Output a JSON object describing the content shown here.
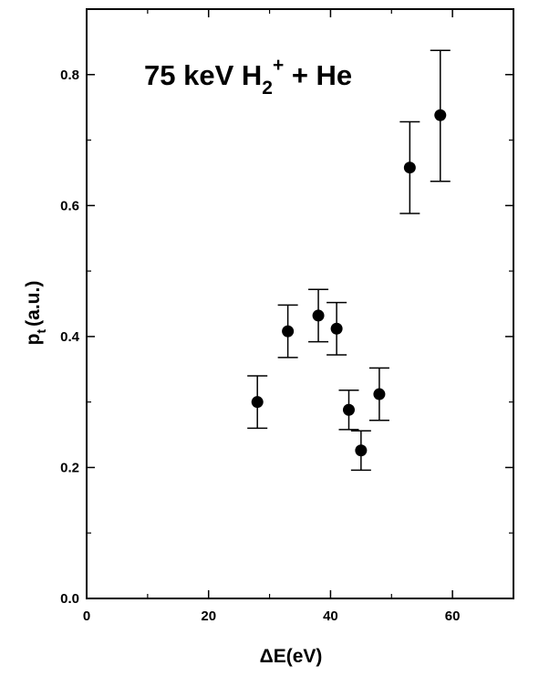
{
  "chart_data": {
    "type": "scatter",
    "title": {
      "prefix": "75 keV H",
      "subscript": "2",
      "superscript": "+",
      "suffix": " + He"
    },
    "xlabel": "ΔE(eV)",
    "ylabel": {
      "main": "p",
      "subscript": "t",
      "units": "(a.u.)"
    },
    "xlim": [
      0,
      70
    ],
    "ylim": [
      0,
      0.9
    ],
    "x_ticks": [
      0,
      20,
      40,
      60
    ],
    "x_tick_labels": [
      "0",
      "20",
      "40",
      "60"
    ],
    "y_ticks": [
      0,
      0.2,
      0.4,
      0.6,
      0.8
    ],
    "y_tick_labels": [
      "0.0",
      "0.2",
      "0.4",
      "0.6",
      "0.8"
    ],
    "grid": false,
    "legend": "none",
    "marker": "filled-circle",
    "marker_color": "#000000",
    "series": [
      {
        "points": [
          {
            "x": 28,
            "y": 0.3,
            "err_low": 0.26,
            "err_high": 0.34
          },
          {
            "x": 33,
            "y": 0.408,
            "err_low": 0.368,
            "err_high": 0.448
          },
          {
            "x": 38,
            "y": 0.432,
            "err_low": 0.392,
            "err_high": 0.472
          },
          {
            "x": 41,
            "y": 0.412,
            "err_low": 0.372,
            "err_high": 0.452
          },
          {
            "x": 43,
            "y": 0.288,
            "err_low": 0.258,
            "err_high": 0.318
          },
          {
            "x": 45,
            "y": 0.226,
            "err_low": 0.196,
            "err_high": 0.256
          },
          {
            "x": 48,
            "y": 0.312,
            "err_low": 0.272,
            "err_high": 0.352
          },
          {
            "x": 53,
            "y": 0.658,
            "err_low": 0.588,
            "err_high": 0.728
          },
          {
            "x": 58,
            "y": 0.738,
            "err_low": 0.637,
            "err_high": 0.837
          }
        ]
      }
    ]
  }
}
